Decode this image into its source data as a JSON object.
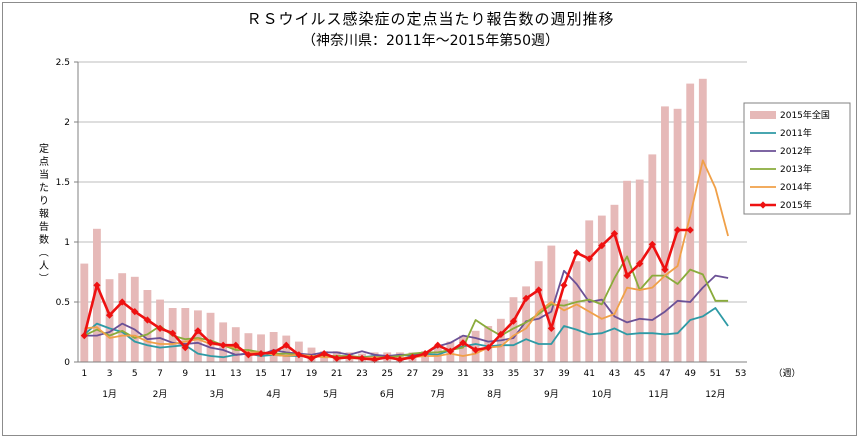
{
  "chart_data": {
    "type": "bar+line",
    "title": "ＲＳウイルス感染症の定点当たり報告数の週別推移",
    "subtitle": "（神奈川県：2011年～2015年第50週）",
    "ylabel": "定点当たり報告数（人）",
    "xunit": "（週）",
    "ylim": [
      0,
      2.5
    ],
    "yticks": [
      "0",
      "0.5",
      "1",
      "1.5",
      "2",
      "2.5"
    ],
    "xtick_labels": [
      "1",
      "3",
      "5",
      "7",
      "9",
      "11",
      "13",
      "15",
      "17",
      "19",
      "21",
      "23",
      "25",
      "27",
      "29",
      "31",
      "33",
      "35",
      "37",
      "39",
      "41",
      "43",
      "45",
      "47",
      "49",
      "51",
      "53"
    ],
    "months": [
      {
        "label": "1月",
        "week": 3
      },
      {
        "label": "2月",
        "week": 7
      },
      {
        "label": "3月",
        "week": 11.5
      },
      {
        "label": "4月",
        "week": 16
      },
      {
        "label": "5月",
        "week": 20.5
      },
      {
        "label": "6月",
        "week": 25
      },
      {
        "label": "7月",
        "week": 29
      },
      {
        "label": "8月",
        "week": 33.5
      },
      {
        "label": "9月",
        "week": 38
      },
      {
        "label": "10月",
        "week": 42
      },
      {
        "label": "11月",
        "week": 46.5
      },
      {
        "label": "12月",
        "week": 51
      }
    ],
    "bars": {
      "name": "2015年全国",
      "color": "#e6b9b8",
      "values": [
        0.82,
        1.11,
        0.69,
        0.74,
        0.71,
        0.6,
        0.52,
        0.45,
        0.45,
        0.43,
        0.41,
        0.33,
        0.29,
        0.24,
        0.23,
        0.25,
        0.22,
        0.17,
        0.12,
        0.09,
        0.09,
        0.08,
        0.07,
        0.08,
        0.08,
        0.08,
        0.08,
        0.09,
        0.14,
        0.17,
        0.22,
        0.26,
        0.3,
        0.36,
        0.54,
        0.63,
        0.84,
        0.97,
        0.52,
        0.84,
        1.18,
        1.22,
        1.31,
        1.51,
        1.52,
        1.73,
        2.13,
        2.11,
        2.32,
        2.36
      ]
    },
    "series": [
      {
        "name": "2011年",
        "color": "#2e9aa5",
        "marker": false,
        "values": [
          0.23,
          0.32,
          0.28,
          0.25,
          0.17,
          0.14,
          0.12,
          0.13,
          0.14,
          0.07,
          0.05,
          0.04,
          0.06,
          0.07,
          0.05,
          0.06,
          0.05,
          0.05,
          0.05,
          0.05,
          0.04,
          0.03,
          0.04,
          0.05,
          0.04,
          0.06,
          0.05,
          0.07,
          0.06,
          0.1,
          0.13,
          0.15,
          0.13,
          0.14,
          0.14,
          0.19,
          0.15,
          0.15,
          0.3,
          0.27,
          0.23,
          0.24,
          0.28,
          0.23,
          0.24,
          0.24,
          0.23,
          0.24,
          0.35,
          0.38,
          0.45,
          0.3
        ]
      },
      {
        "name": "2012年",
        "color": "#6b5196",
        "marker": false,
        "values": [
          0.22,
          0.22,
          0.25,
          0.32,
          0.27,
          0.19,
          0.2,
          0.16,
          0.15,
          0.16,
          0.12,
          0.1,
          0.06,
          0.07,
          0.06,
          0.1,
          0.08,
          0.07,
          0.06,
          0.08,
          0.08,
          0.06,
          0.09,
          0.06,
          0.05,
          0.06,
          0.06,
          0.07,
          0.13,
          0.16,
          0.22,
          0.2,
          0.17,
          0.18,
          0.2,
          0.34,
          0.36,
          0.42,
          0.76,
          0.65,
          0.5,
          0.52,
          0.38,
          0.33,
          0.36,
          0.35,
          0.42,
          0.51,
          0.5,
          0.62,
          0.72,
          0.7
        ]
      },
      {
        "name": "2013年",
        "color": "#8aab3b",
        "marker": false,
        "values": [
          0.22,
          0.27,
          0.22,
          0.26,
          0.2,
          0.23,
          0.3,
          0.22,
          0.19,
          0.2,
          0.18,
          0.14,
          0.1,
          0.1,
          0.08,
          0.07,
          0.07,
          0.06,
          0.05,
          0.05,
          0.05,
          0.05,
          0.04,
          0.04,
          0.04,
          0.05,
          0.07,
          0.08,
          0.08,
          0.1,
          0.12,
          0.35,
          0.28,
          0.22,
          0.28,
          0.33,
          0.4,
          0.48,
          0.47,
          0.5,
          0.52,
          0.48,
          0.7,
          0.88,
          0.6,
          0.72,
          0.72,
          0.65,
          0.77,
          0.73,
          0.51,
          0.51
        ]
      },
      {
        "name": "2014年",
        "color": "#f0a048",
        "marker": false,
        "values": [
          0.28,
          0.29,
          0.2,
          0.22,
          0.22,
          0.17,
          0.15,
          0.15,
          0.17,
          0.19,
          0.15,
          0.14,
          0.12,
          0.08,
          0.08,
          0.06,
          0.05,
          0.06,
          0.05,
          0.04,
          0.04,
          0.03,
          0.03,
          0.04,
          0.03,
          0.03,
          0.04,
          0.05,
          0.05,
          0.07,
          0.05,
          0.07,
          0.12,
          0.13,
          0.22,
          0.28,
          0.42,
          0.5,
          0.43,
          0.48,
          0.42,
          0.36,
          0.4,
          0.62,
          0.6,
          0.62,
          0.72,
          0.8,
          1.22,
          1.68,
          1.45,
          1.05
        ]
      },
      {
        "name": "2015年",
        "color": "#ee1111",
        "marker": true,
        "values": [
          0.22,
          0.64,
          0.39,
          0.5,
          0.42,
          0.35,
          0.28,
          0.24,
          0.12,
          0.26,
          0.16,
          0.14,
          0.14,
          0.06,
          0.07,
          0.08,
          0.14,
          0.06,
          0.03,
          0.07,
          0.03,
          0.04,
          0.03,
          0.02,
          0.04,
          0.02,
          0.04,
          0.07,
          0.14,
          0.09,
          0.16,
          0.1,
          0.12,
          0.23,
          0.34,
          0.53,
          0.6,
          0.28,
          0.64,
          0.91,
          0.86,
          0.97,
          1.07,
          0.72,
          0.82,
          0.98,
          0.77,
          1.1,
          1.1
        ]
      }
    ],
    "grid": true,
    "legend": "right"
  }
}
